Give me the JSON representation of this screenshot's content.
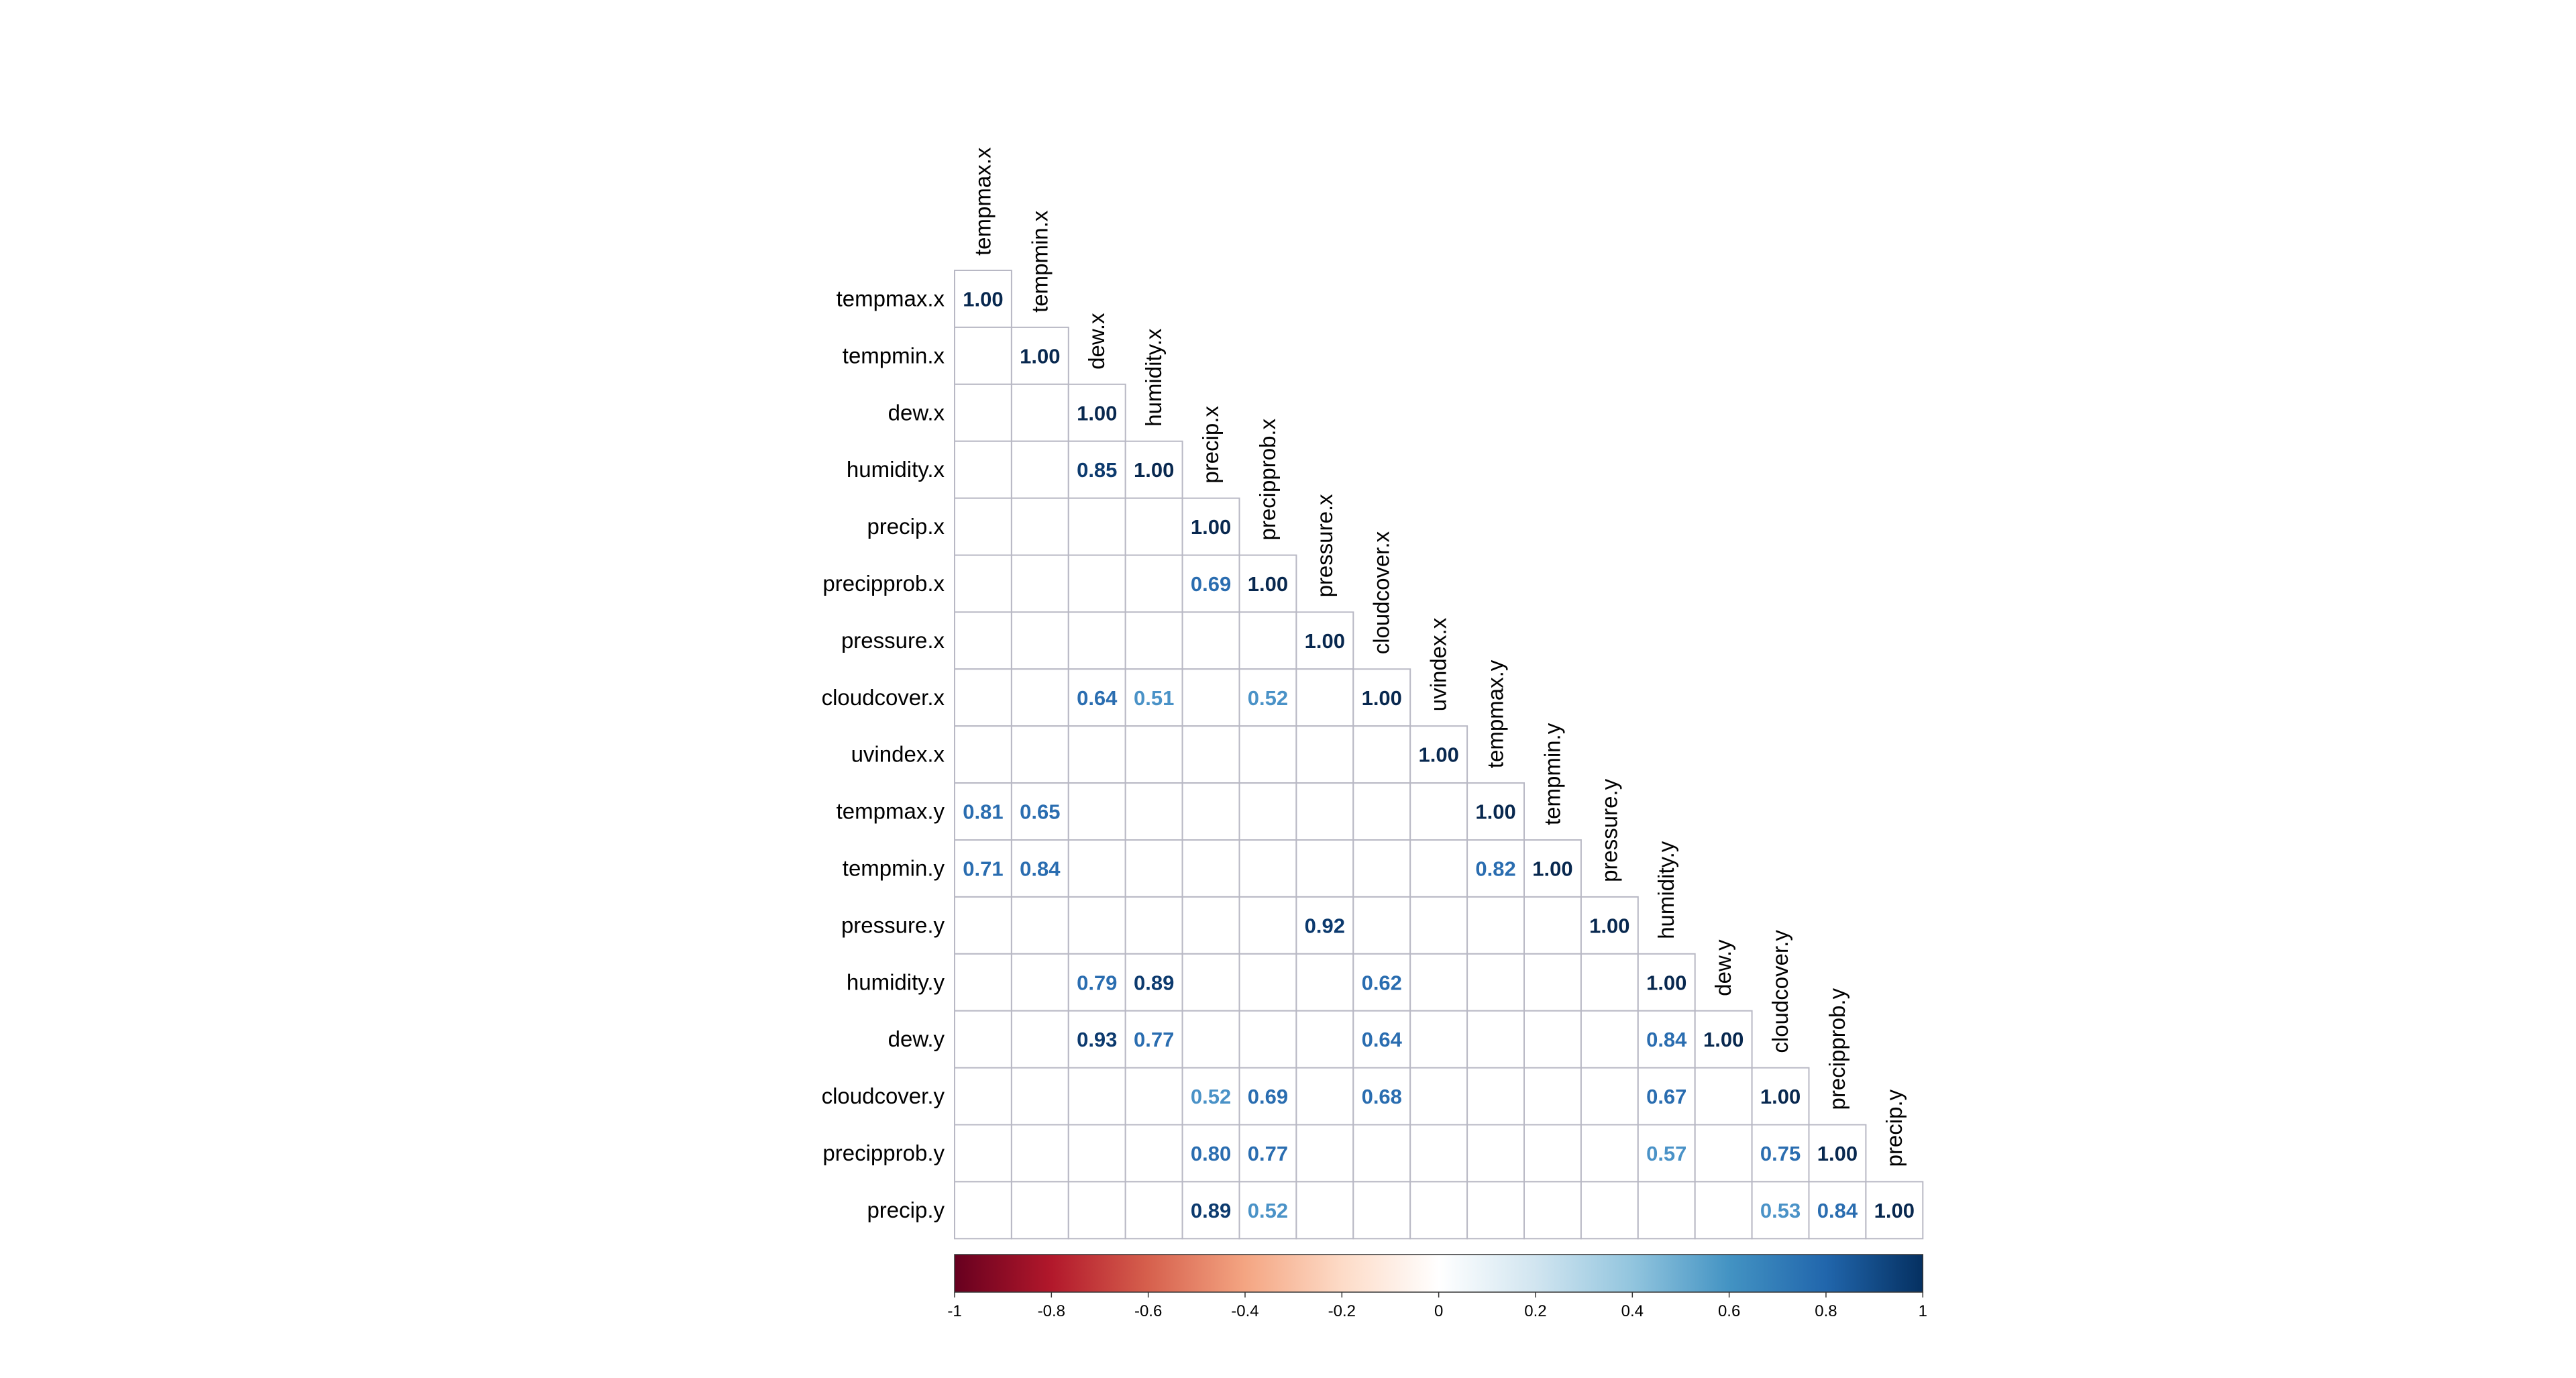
{
  "chart_data": {
    "type": "heatmap",
    "layout": "lower-triangle",
    "variables": [
      "tempmax.x",
      "tempmin.x",
      "dew.x",
      "humidity.x",
      "precip.x",
      "precipprob.x",
      "pressure.x",
      "cloudcover.x",
      "uvindex.x",
      "tempmax.y",
      "tempmin.y",
      "pressure.y",
      "humidity.y",
      "dew.y",
      "cloudcover.y",
      "precipprob.y",
      "precip.y"
    ],
    "cells": [
      {
        "row": "tempmax.x",
        "col": "tempmax.x",
        "value": 1.0,
        "label": "1.00"
      },
      {
        "row": "tempmin.x",
        "col": "tempmin.x",
        "value": 1.0,
        "label": "1.00"
      },
      {
        "row": "dew.x",
        "col": "dew.x",
        "value": 1.0,
        "label": "1.00"
      },
      {
        "row": "humidity.x",
        "col": "dew.x",
        "value": 0.85,
        "label": "0.85"
      },
      {
        "row": "humidity.x",
        "col": "humidity.x",
        "value": 1.0,
        "label": "1.00"
      },
      {
        "row": "precip.x",
        "col": "precip.x",
        "value": 1.0,
        "label": "1.00"
      },
      {
        "row": "precipprob.x",
        "col": "precip.x",
        "value": 0.69,
        "label": "0.69"
      },
      {
        "row": "precipprob.x",
        "col": "precipprob.x",
        "value": 1.0,
        "label": "1.00"
      },
      {
        "row": "pressure.x",
        "col": "pressure.x",
        "value": 1.0,
        "label": "1.00"
      },
      {
        "row": "cloudcover.x",
        "col": "dew.x",
        "value": 0.64,
        "label": "0.64"
      },
      {
        "row": "cloudcover.x",
        "col": "humidity.x",
        "value": 0.51,
        "label": "0.51"
      },
      {
        "row": "cloudcover.x",
        "col": "precipprob.x",
        "value": 0.52,
        "label": "0.52"
      },
      {
        "row": "cloudcover.x",
        "col": "cloudcover.x",
        "value": 1.0,
        "label": "1.00"
      },
      {
        "row": "uvindex.x",
        "col": "uvindex.x",
        "value": 1.0,
        "label": "1.00"
      },
      {
        "row": "tempmax.y",
        "col": "tempmax.x",
        "value": 0.81,
        "label": "0.81"
      },
      {
        "row": "tempmax.y",
        "col": "tempmin.x",
        "value": 0.65,
        "label": "0.65"
      },
      {
        "row": "tempmax.y",
        "col": "tempmax.y",
        "value": 1.0,
        "label": "1.00"
      },
      {
        "row": "tempmin.y",
        "col": "tempmax.x",
        "value": 0.71,
        "label": "0.71"
      },
      {
        "row": "tempmin.y",
        "col": "tempmin.x",
        "value": 0.84,
        "label": "0.84"
      },
      {
        "row": "tempmin.y",
        "col": "tempmax.y",
        "value": 0.82,
        "label": "0.82"
      },
      {
        "row": "tempmin.y",
        "col": "tempmin.y",
        "value": 1.0,
        "label": "1.00"
      },
      {
        "row": "pressure.y",
        "col": "pressure.x",
        "value": 0.92,
        "label": "0.92"
      },
      {
        "row": "pressure.y",
        "col": "pressure.y",
        "value": 1.0,
        "label": "1.00"
      },
      {
        "row": "humidity.y",
        "col": "dew.x",
        "value": 0.79,
        "label": "0.79"
      },
      {
        "row": "humidity.y",
        "col": "humidity.x",
        "value": 0.89,
        "label": "0.89"
      },
      {
        "row": "humidity.y",
        "col": "cloudcover.x",
        "value": 0.62,
        "label": "0.62"
      },
      {
        "row": "humidity.y",
        "col": "humidity.y",
        "value": 1.0,
        "label": "1.00"
      },
      {
        "row": "dew.y",
        "col": "dew.x",
        "value": 0.93,
        "label": "0.93"
      },
      {
        "row": "dew.y",
        "col": "humidity.x",
        "value": 0.77,
        "label": "0.77"
      },
      {
        "row": "dew.y",
        "col": "cloudcover.x",
        "value": 0.64,
        "label": "0.64"
      },
      {
        "row": "dew.y",
        "col": "humidity.y",
        "value": 0.84,
        "label": "0.84"
      },
      {
        "row": "dew.y",
        "col": "dew.y",
        "value": 1.0,
        "label": "1.00"
      },
      {
        "row": "cloudcover.y",
        "col": "precip.x",
        "value": 0.52,
        "label": "0.52"
      },
      {
        "row": "cloudcover.y",
        "col": "precipprob.x",
        "value": 0.69,
        "label": "0.69"
      },
      {
        "row": "cloudcover.y",
        "col": "cloudcover.x",
        "value": 0.68,
        "label": "0.68"
      },
      {
        "row": "cloudcover.y",
        "col": "humidity.y",
        "value": 0.67,
        "label": "0.67"
      },
      {
        "row": "cloudcover.y",
        "col": "cloudcover.y",
        "value": 1.0,
        "label": "1.00"
      },
      {
        "row": "precipprob.y",
        "col": "precip.x",
        "value": 0.8,
        "label": "0.80"
      },
      {
        "row": "precipprob.y",
        "col": "precipprob.x",
        "value": 0.77,
        "label": "0.77"
      },
      {
        "row": "precipprob.y",
        "col": "humidity.y",
        "value": 0.57,
        "label": "0.57"
      },
      {
        "row": "precipprob.y",
        "col": "cloudcover.y",
        "value": 0.75,
        "label": "0.75"
      },
      {
        "row": "precipprob.y",
        "col": "precipprob.y",
        "value": 1.0,
        "label": "1.00"
      },
      {
        "row": "precip.y",
        "col": "precip.x",
        "value": 0.89,
        "label": "0.89"
      },
      {
        "row": "precip.y",
        "col": "precipprob.x",
        "value": 0.52,
        "label": "0.52"
      },
      {
        "row": "precip.y",
        "col": "cloudcover.y",
        "value": 0.53,
        "label": "0.53"
      },
      {
        "row": "precip.y",
        "col": "precipprob.y",
        "value": 0.84,
        "label": "0.84"
      },
      {
        "row": "precip.y",
        "col": "precip.y",
        "value": 1.0,
        "label": "1.00"
      }
    ],
    "colorbar": {
      "range": [
        -1,
        1
      ],
      "ticks": [
        -1,
        -0.8,
        -0.6,
        -0.4,
        -0.2,
        0,
        0.2,
        0.4,
        0.6,
        0.8,
        1
      ],
      "tick_labels": [
        "-1",
        "-0.8",
        "-0.6",
        "-0.4",
        "-0.2",
        "0",
        "0.2",
        "0.4",
        "0.6",
        "0.8",
        "1"
      ],
      "orientation": "horizontal",
      "placement": "bottom",
      "palette": [
        "#67001F",
        "#B2182B",
        "#D6604D",
        "#F4A582",
        "#FDDBC7",
        "#FFFFFF",
        "#D1E5F0",
        "#92C5DE",
        "#4393C3",
        "#2166AC",
        "#053061"
      ]
    },
    "grid": true,
    "grid_color": "#b8b8c4",
    "colors": {
      "weak": "#4A92C7",
      "medium": "#2A6DB0",
      "strong": "#0C3A6E",
      "diagonal": "#08284F"
    }
  }
}
